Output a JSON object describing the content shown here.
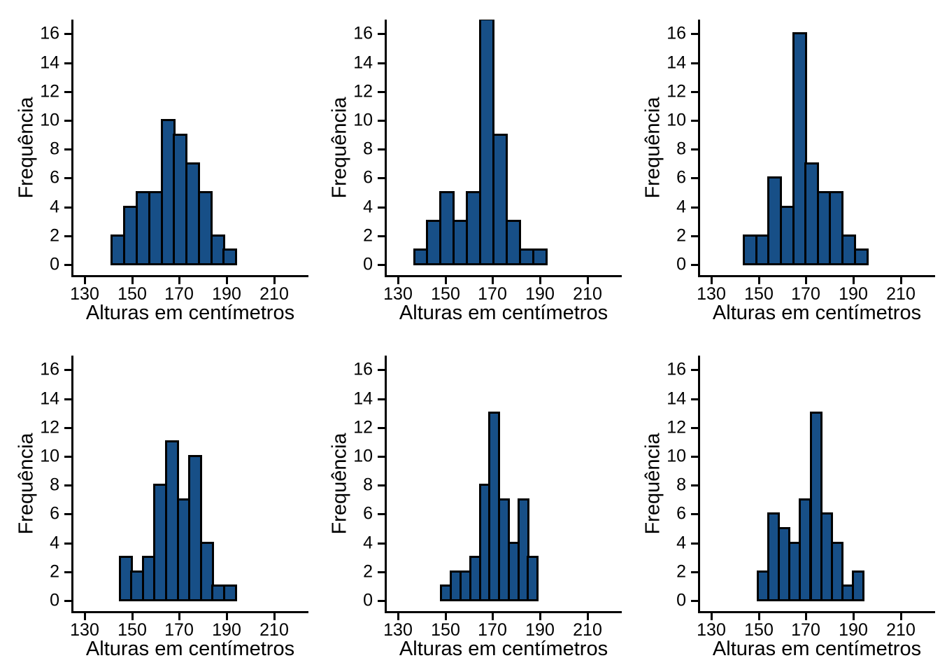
{
  "figure": {
    "layout": {
      "rows": 2,
      "cols": 3
    },
    "xlabel": "Alturas em centímetros",
    "ylabel": "Frequência",
    "x_ticks": [
      130,
      150,
      170,
      190,
      210
    ],
    "y_ticks": [
      0,
      2,
      4,
      6,
      8,
      10,
      12,
      14,
      16
    ],
    "colors": {
      "bar_fill": "#174f87",
      "bar_stroke": "#000000",
      "axis": "#000000",
      "text": "#000000",
      "background": "#ffffff"
    }
  },
  "chart_data": [
    {
      "type": "bar",
      "subtype": "histogram",
      "panel": 1,
      "row": 1,
      "col": 1,
      "title": "",
      "xlabel": "Alturas em centímetros",
      "ylabel": "Frequência",
      "x_ticks": [
        130,
        150,
        170,
        190,
        210
      ],
      "y_ticks": [
        0,
        2,
        4,
        6,
        8,
        10,
        12,
        14,
        16
      ],
      "xlim": [
        125,
        224.5
      ],
      "ylim": [
        0,
        17
      ],
      "grid": false,
      "bin_start": 141.5,
      "bin_width": 5.25,
      "values": [
        2,
        4,
        5,
        5,
        10,
        9,
        7,
        5,
        2,
        1
      ]
    },
    {
      "type": "bar",
      "subtype": "histogram",
      "panel": 2,
      "row": 1,
      "col": 2,
      "title": "",
      "xlabel": "Alturas em centímetros",
      "ylabel": "Frequência",
      "x_ticks": [
        130,
        150,
        170,
        190,
        210
      ],
      "y_ticks": [
        0,
        2,
        4,
        6,
        8,
        10,
        12,
        14,
        16
      ],
      "xlim": [
        125,
        224.5
      ],
      "ylim": [
        0,
        17
      ],
      "grid": false,
      "bin_start": 136.8,
      "bin_width": 5.6,
      "values": [
        1,
        3,
        5,
        3,
        5,
        17,
        9,
        3,
        1,
        1
      ],
      "note": "tallest bar exceeds the 16 tick and is clipped at the top of the plot area"
    },
    {
      "type": "bar",
      "subtype": "histogram",
      "panel": 3,
      "row": 1,
      "col": 3,
      "title": "",
      "xlabel": "Alturas em centímetros",
      "ylabel": "Frequência",
      "x_ticks": [
        130,
        150,
        170,
        190,
        210
      ],
      "y_ticks": [
        0,
        2,
        4,
        6,
        8,
        10,
        12,
        14,
        16
      ],
      "xlim": [
        125,
        224.5
      ],
      "ylim": [
        0,
        17
      ],
      "grid": false,
      "bin_start": 143.8,
      "bin_width": 5.2,
      "values": [
        2,
        2,
        6,
        4,
        16,
        7,
        5,
        5,
        2,
        1
      ]
    },
    {
      "type": "bar",
      "subtype": "histogram",
      "panel": 4,
      "row": 2,
      "col": 1,
      "title": "",
      "xlabel": "Alturas em centímetros",
      "ylabel": "Frequência",
      "x_ticks": [
        130,
        150,
        170,
        190,
        210
      ],
      "y_ticks": [
        0,
        2,
        4,
        6,
        8,
        10,
        12,
        14,
        16
      ],
      "xlim": [
        125,
        224.5
      ],
      "ylim": [
        0,
        17
      ],
      "grid": false,
      "bin_start": 144.8,
      "bin_width": 4.9,
      "values": [
        3,
        2,
        3,
        8,
        11,
        7,
        10,
        4,
        1,
        1
      ]
    },
    {
      "type": "bar",
      "subtype": "histogram",
      "panel": 5,
      "row": 2,
      "col": 2,
      "title": "",
      "xlabel": "Alturas em centímetros",
      "ylabel": "Frequência",
      "x_ticks": [
        130,
        150,
        170,
        190,
        210
      ],
      "y_ticks": [
        0,
        2,
        4,
        6,
        8,
        10,
        12,
        14,
        16
      ],
      "xlim": [
        125,
        224.5
      ],
      "ylim": [
        0,
        17
      ],
      "grid": false,
      "bin_start": 148.3,
      "bin_width": 4.07,
      "values": [
        1,
        2,
        2,
        3,
        8,
        13,
        7,
        4,
        7,
        3
      ]
    },
    {
      "type": "bar",
      "subtype": "histogram",
      "panel": 6,
      "row": 2,
      "col": 3,
      "title": "",
      "xlabel": "Alturas em centímetros",
      "ylabel": "Frequência",
      "x_ticks": [
        130,
        150,
        170,
        190,
        210
      ],
      "y_ticks": [
        0,
        2,
        4,
        6,
        8,
        10,
        12,
        14,
        16
      ],
      "xlim": [
        125,
        224.5
      ],
      "ylim": [
        0,
        17
      ],
      "grid": false,
      "bin_start": 149.7,
      "bin_width": 4.45,
      "values": [
        2,
        6,
        5,
        4,
        7,
        13,
        6,
        4,
        1,
        2
      ]
    }
  ]
}
